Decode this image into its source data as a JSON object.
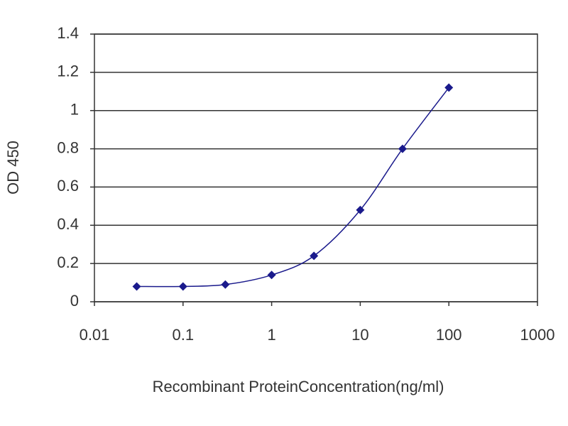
{
  "chart_data": {
    "type": "line",
    "xlabel": "Recombinant ProteinConcentration(ng/ml)",
    "ylabel": "OD 450",
    "x": [
      0.03,
      0.1,
      0.3,
      1,
      3,
      10,
      30,
      100
    ],
    "values": [
      0.08,
      0.08,
      0.09,
      0.14,
      0.24,
      0.48,
      0.8,
      1.12
    ],
    "color": "#1a1a8c",
    "xscale": "log",
    "xlim": [
      0.01,
      1000
    ],
    "xticks": [
      0.01,
      0.1,
      1,
      10,
      100,
      1000
    ],
    "ylim": [
      0,
      1.4
    ],
    "yticks": [
      0,
      0.2,
      0.4,
      0.6,
      0.8,
      1,
      1.2,
      1.4
    ],
    "grid": true
  }
}
